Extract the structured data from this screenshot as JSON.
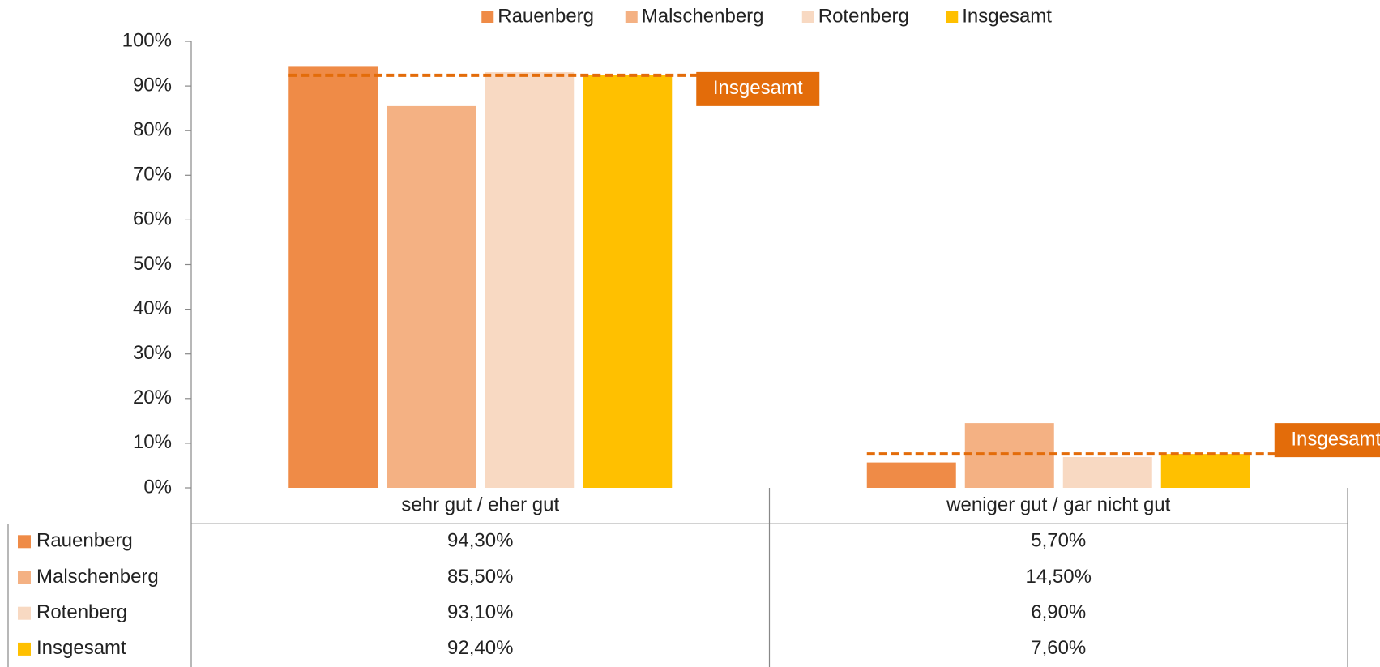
{
  "chart_data": {
    "type": "bar",
    "categories": [
      "sehr gut / eher gut",
      "weniger gut / gar nicht gut"
    ],
    "series": [
      {
        "name": "Rauenberg",
        "color": "#ef8b47",
        "values": [
          94.3,
          5.7
        ],
        "value_labels": [
          "94,30%",
          "5,70%"
        ]
      },
      {
        "name": "Malschenberg",
        "color": "#f4b183",
        "values": [
          85.5,
          14.5
        ],
        "value_labels": [
          "85,50%",
          "14,50%"
        ]
      },
      {
        "name": "Rotenberg",
        "color": "#f8d9c2",
        "values": [
          93.1,
          6.9
        ],
        "value_labels": [
          "93,10%",
          "6,90%"
        ]
      },
      {
        "name": "Insgesamt",
        "color": "#ffc000",
        "values": [
          92.4,
          7.6
        ],
        "value_labels": [
          "92,40%",
          "7,60%"
        ]
      }
    ],
    "annotations": [
      "Insgesamt",
      "Insgesamt"
    ],
    "annotation_color": "#e36c0a",
    "ylim": [
      0,
      100
    ],
    "yticks": [
      {
        "value": 0,
        "label": "0%"
      },
      {
        "value": 10,
        "label": "10%"
      },
      {
        "value": 20,
        "label": "20%"
      },
      {
        "value": 30,
        "label": "30%"
      },
      {
        "value": 40,
        "label": "40%"
      },
      {
        "value": 50,
        "label": "50%"
      },
      {
        "value": 60,
        "label": "60%"
      },
      {
        "value": 70,
        "label": "70%"
      },
      {
        "value": 80,
        "label": "80%"
      },
      {
        "value": 90,
        "label": "90%"
      },
      {
        "value": 100,
        "label": "100%"
      }
    ],
    "legend": "top"
  }
}
